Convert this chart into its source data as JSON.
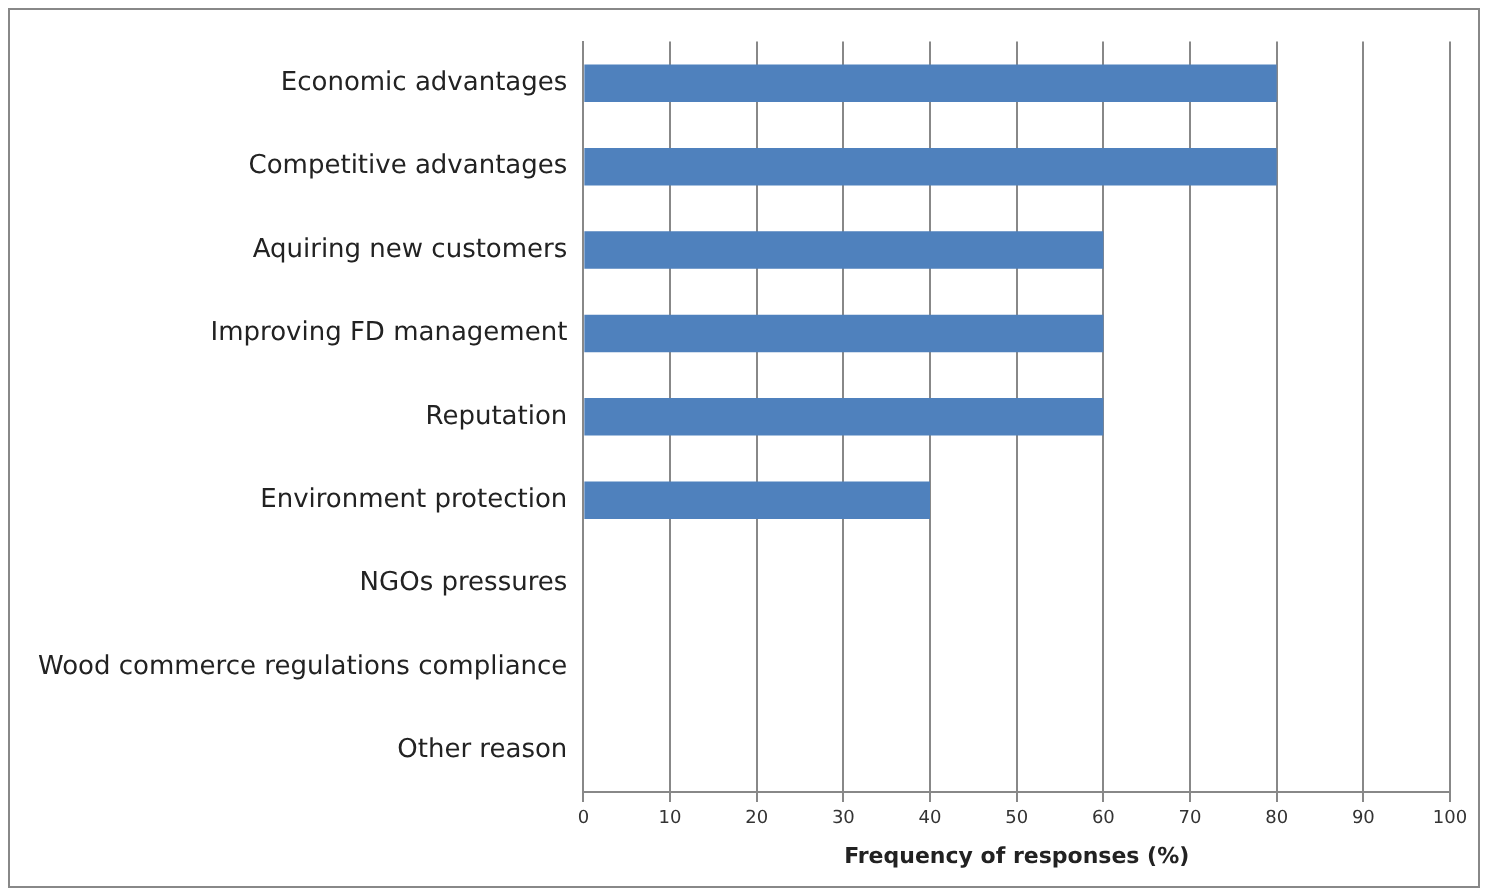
{
  "chart_data": {
    "type": "bar",
    "orientation": "horizontal",
    "xlabel": "Frequency of responses (%)",
    "categories": [
      "Economic advantages",
      "Competitive advantages",
      "Aquiring new customers",
      "Improving FD management",
      "Reputation",
      "Environment protection",
      "NGOs pressures",
      "Wood commerce regulations compliance",
      "Other reason"
    ],
    "values": [
      80,
      80,
      60,
      60,
      60,
      40,
      0,
      0,
      0
    ],
    "color": "#4f81bd",
    "xlim": [
      0,
      100
    ],
    "xticks": [
      0,
      10,
      20,
      30,
      40,
      50,
      60,
      70,
      80,
      90,
      100
    ],
    "grid": "x"
  }
}
